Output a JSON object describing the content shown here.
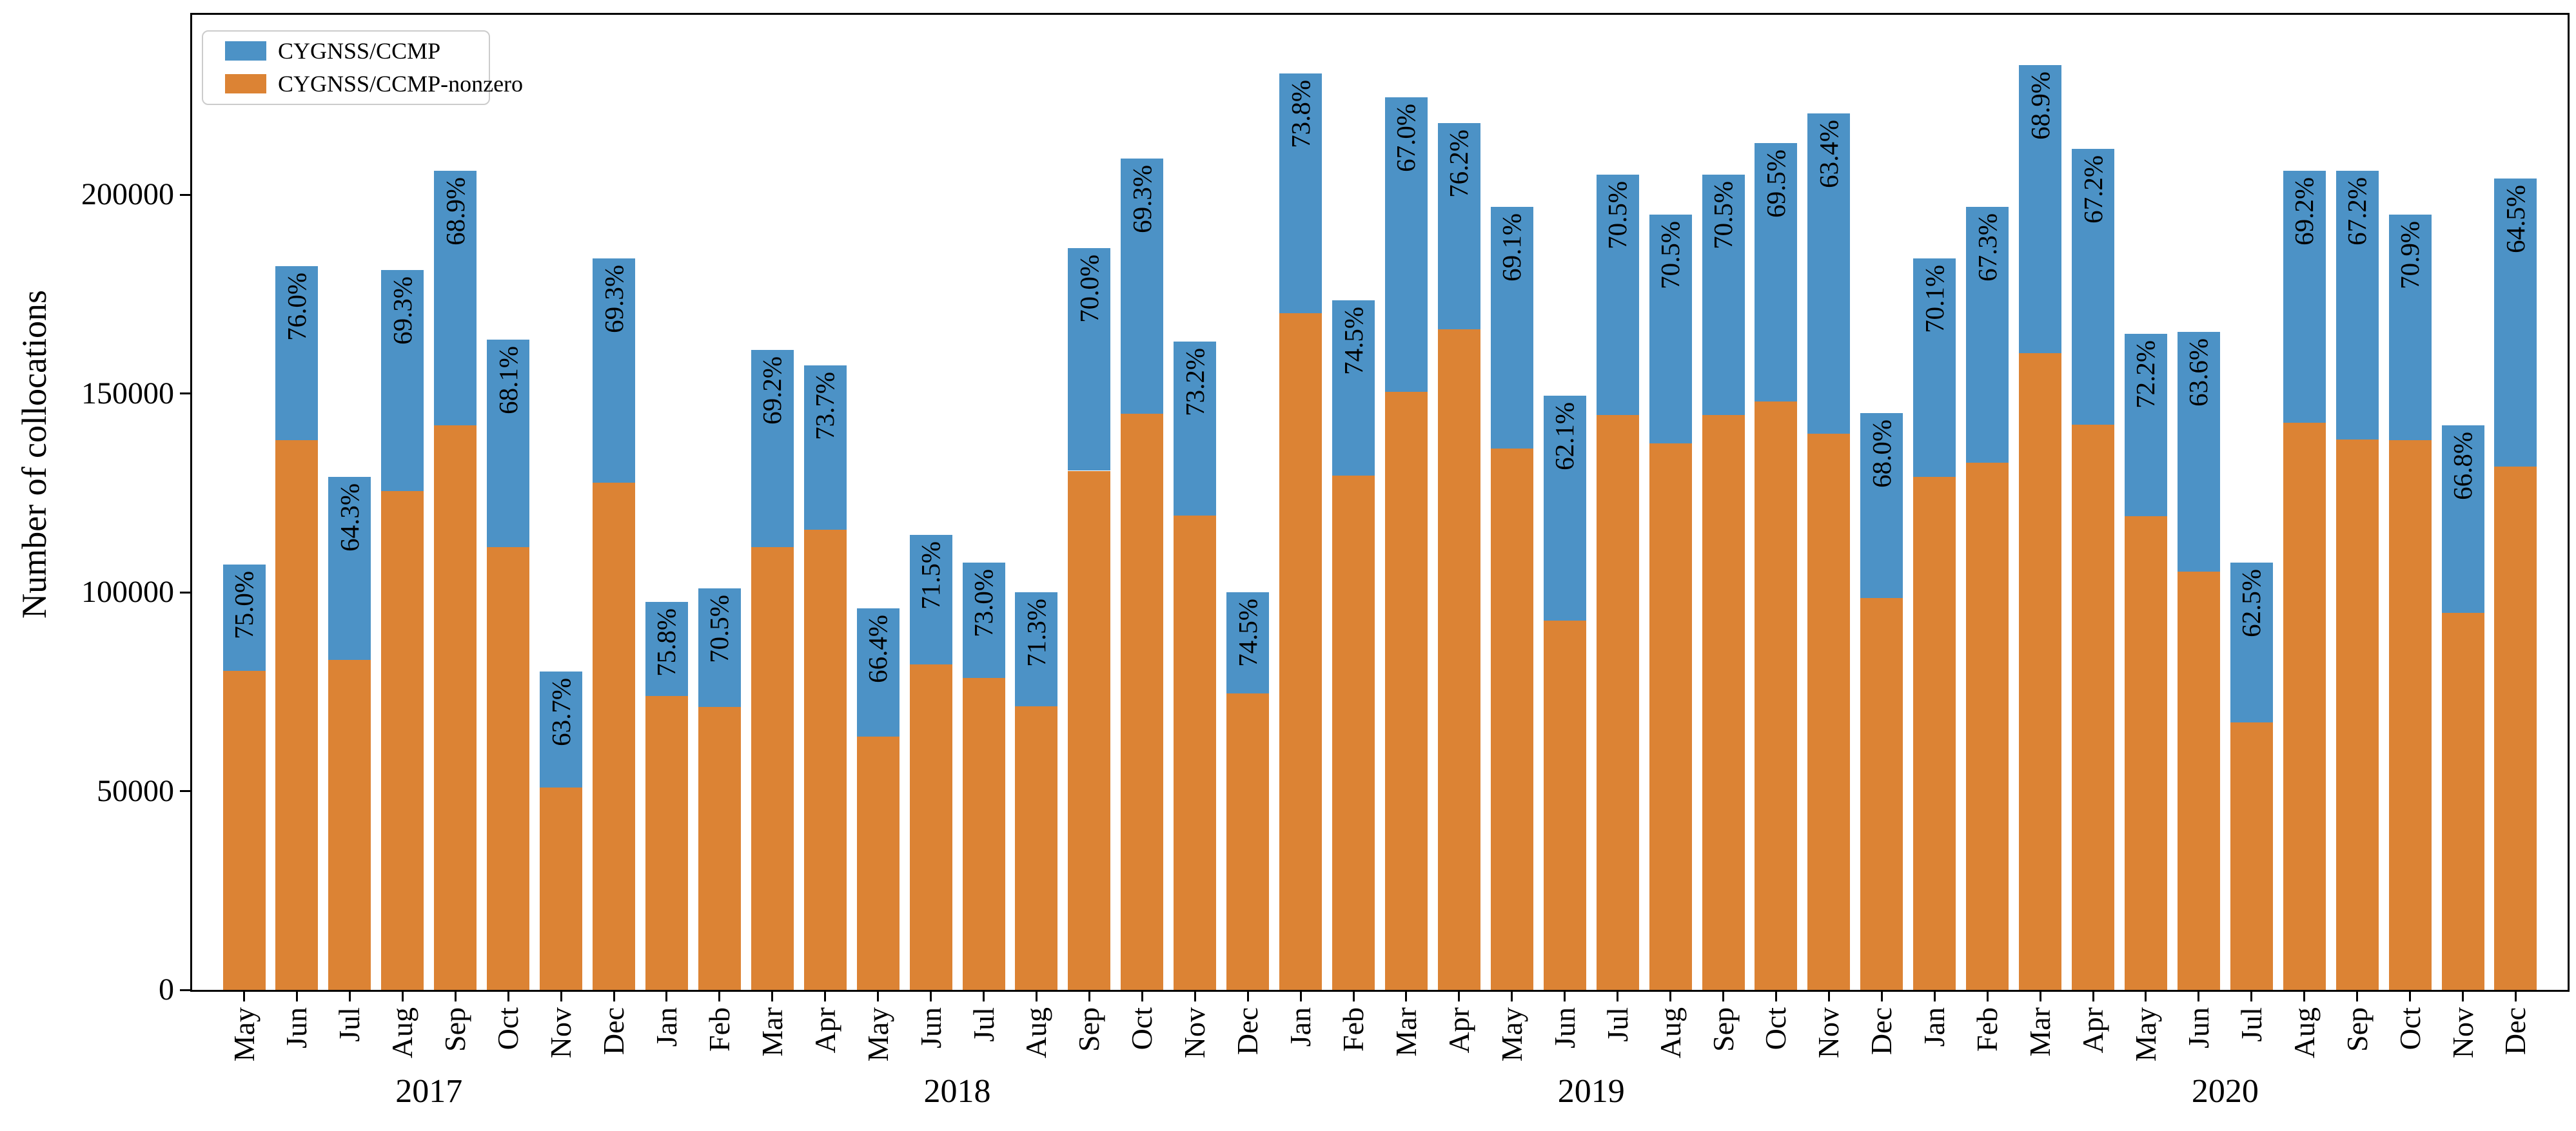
{
  "chart_data": {
    "type": "bar",
    "stacked": true,
    "title": "",
    "xlabel": "",
    "ylabel": "Number of collocations",
    "ylim": [
      0,
      245000
    ],
    "yticks": [
      0,
      50000,
      100000,
      150000,
      200000
    ],
    "grid": false,
    "legend_position": "upper-left",
    "series_colors": {
      "total": "#4C92C6",
      "nonzero": "#DC8334"
    },
    "axis_color": "#000000",
    "legend_border_color": "#cccccc",
    "series": [
      {
        "name": "CYGNSS/CCMP"
      },
      {
        "name": "CYGNSS/CCMP-nonzero"
      }
    ],
    "bars": [
      {
        "month": "May",
        "year": "2017",
        "total": 107000,
        "nonzero": 80250,
        "pct_label": "75.0%"
      },
      {
        "month": "Jun",
        "year": "2017",
        "total": 182000,
        "nonzero": 138320,
        "pct_label": "76.0%"
      },
      {
        "month": "Jul",
        "year": "2017",
        "total": 129000,
        "nonzero": 82950,
        "pct_label": "64.3%"
      },
      {
        "month": "Aug",
        "year": "2017",
        "total": 181000,
        "nonzero": 125430,
        "pct_label": "69.3%"
      },
      {
        "month": "Sep",
        "year": "2017",
        "total": 206000,
        "nonzero": 141930,
        "pct_label": "68.9%"
      },
      {
        "month": "Oct",
        "year": "2017",
        "total": 163500,
        "nonzero": 111340,
        "pct_label": "68.1%"
      },
      {
        "month": "Nov",
        "year": "2017",
        "total": 80000,
        "nonzero": 50960,
        "pct_label": "63.7%"
      },
      {
        "month": "Dec",
        "year": "2017",
        "total": 184000,
        "nonzero": 127510,
        "pct_label": "69.3%"
      },
      {
        "month": "Jan",
        "year": "2018",
        "total": 97500,
        "nonzero": 73905,
        "pct_label": "75.8%"
      },
      {
        "month": "Feb",
        "year": "2018",
        "total": 101000,
        "nonzero": 71205,
        "pct_label": "70.5%"
      },
      {
        "month": "Mar",
        "year": "2018",
        "total": 161000,
        "nonzero": 111410,
        "pct_label": "69.2%"
      },
      {
        "month": "Apr",
        "year": "2018",
        "total": 157000,
        "nonzero": 115710,
        "pct_label": "73.7%"
      },
      {
        "month": "May",
        "year": "2018",
        "total": 96000,
        "nonzero": 63740,
        "pct_label": "66.4%"
      },
      {
        "month": "Jun",
        "year": "2018",
        "total": 114500,
        "nonzero": 81870,
        "pct_label": "71.5%"
      },
      {
        "month": "Jul",
        "year": "2018",
        "total": 107500,
        "nonzero": 78475,
        "pct_label": "73.0%"
      },
      {
        "month": "Aug",
        "year": "2018",
        "total": 100000,
        "nonzero": 71300,
        "pct_label": "71.3%"
      },
      {
        "month": "Sep",
        "year": "2018",
        "total": 186500,
        "nonzero": 130550,
        "pct_label": "70.0%"
      },
      {
        "month": "Oct",
        "year": "2018",
        "total": 209000,
        "nonzero": 144840,
        "pct_label": "69.3%"
      },
      {
        "month": "Nov",
        "year": "2018",
        "total": 163000,
        "nonzero": 119320,
        "pct_label": "73.2%"
      },
      {
        "month": "Dec",
        "year": "2018",
        "total": 100000,
        "nonzero": 74500,
        "pct_label": "74.5%"
      },
      {
        "month": "Jan",
        "year": "2019",
        "total": 230500,
        "nonzero": 170110,
        "pct_label": "73.8%"
      },
      {
        "month": "Feb",
        "year": "2019",
        "total": 173500,
        "nonzero": 129260,
        "pct_label": "74.5%"
      },
      {
        "month": "Mar",
        "year": "2019",
        "total": 224500,
        "nonzero": 150420,
        "pct_label": "67.0%"
      },
      {
        "month": "Apr",
        "year": "2019",
        "total": 218000,
        "nonzero": 166120,
        "pct_label": "76.2%"
      },
      {
        "month": "May",
        "year": "2019",
        "total": 197000,
        "nonzero": 136130,
        "pct_label": "69.1%"
      },
      {
        "month": "Jun",
        "year": "2019",
        "total": 149500,
        "nonzero": 92840,
        "pct_label": "62.1%"
      },
      {
        "month": "Jul",
        "year": "2019",
        "total": 205000,
        "nonzero": 144530,
        "pct_label": "70.5%"
      },
      {
        "month": "Aug",
        "year": "2019",
        "total": 195000,
        "nonzero": 137480,
        "pct_label": "70.5%"
      },
      {
        "month": "Sep",
        "year": "2019",
        "total": 205000,
        "nonzero": 144530,
        "pct_label": "70.5%"
      },
      {
        "month": "Oct",
        "year": "2019",
        "total": 213000,
        "nonzero": 148040,
        "pct_label": "69.5%"
      },
      {
        "month": "Nov",
        "year": "2019",
        "total": 220500,
        "nonzero": 139800,
        "pct_label": "63.4%"
      },
      {
        "month": "Dec",
        "year": "2019",
        "total": 145000,
        "nonzero": 98600,
        "pct_label": "68.0%"
      },
      {
        "month": "Jan",
        "year": "2020",
        "total": 184000,
        "nonzero": 128980,
        "pct_label": "70.1%"
      },
      {
        "month": "Feb",
        "year": "2020",
        "total": 197000,
        "nonzero": 132580,
        "pct_label": "67.3%"
      },
      {
        "month": "Mar",
        "year": "2020",
        "total": 232500,
        "nonzero": 160190,
        "pct_label": "68.9%"
      },
      {
        "month": "Apr",
        "year": "2020",
        "total": 211500,
        "nonzero": 142130,
        "pct_label": "67.2%"
      },
      {
        "month": "May",
        "year": "2020",
        "total": 165000,
        "nonzero": 119130,
        "pct_label": "72.2%"
      },
      {
        "month": "Jun",
        "year": "2020",
        "total": 165500,
        "nonzero": 105260,
        "pct_label": "63.6%"
      },
      {
        "month": "Jul",
        "year": "2020",
        "total": 107500,
        "nonzero": 67190,
        "pct_label": "62.5%"
      },
      {
        "month": "Aug",
        "year": "2020",
        "total": 206000,
        "nonzero": 142550,
        "pct_label": "69.2%"
      },
      {
        "month": "Sep",
        "year": "2020",
        "total": 206000,
        "nonzero": 138430,
        "pct_label": "67.2%"
      },
      {
        "month": "Oct",
        "year": "2020",
        "total": 195000,
        "nonzero": 138260,
        "pct_label": "70.9%"
      },
      {
        "month": "Nov",
        "year": "2020",
        "total": 142000,
        "nonzero": 94860,
        "pct_label": "66.8%"
      },
      {
        "month": "Dec",
        "year": "2020",
        "total": 204000,
        "nonzero": 131580,
        "pct_label": "64.5%"
      }
    ],
    "year_labels": [
      "2017",
      "2018",
      "2019",
      "2020"
    ]
  }
}
